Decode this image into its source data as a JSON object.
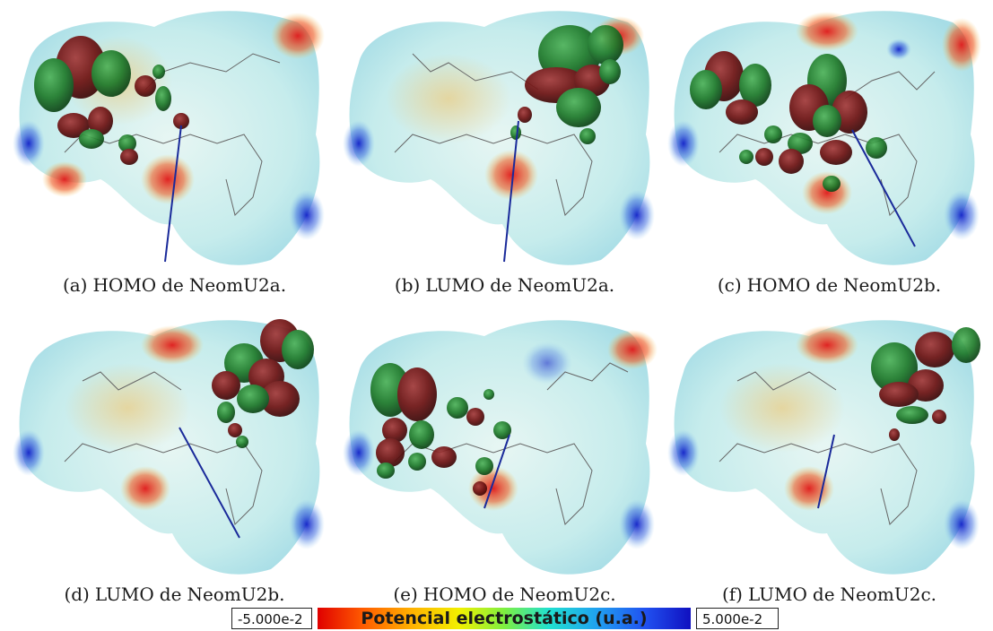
{
  "panels": [
    {
      "tag": "(a)",
      "orbital": "HOMO",
      "prep": "de",
      "molecule": "NeomU2a."
    },
    {
      "tag": "(b)",
      "orbital": "LUMO",
      "prep": "de",
      "molecule": "NeomU2a."
    },
    {
      "tag": "(c)",
      "orbital": "HOMO",
      "prep": "de",
      "molecule": "NeomU2b."
    },
    {
      "tag": "(d)",
      "orbital": "LUMO",
      "prep": "de",
      "molecule": "NeomU2b."
    },
    {
      "tag": "(e)",
      "orbital": "HOMO",
      "prep": "de",
      "molecule": "NeomU2c."
    },
    {
      "tag": "(f)",
      "orbital": "LUMO",
      "prep": "de",
      "molecule": "NeomU2c."
    }
  ],
  "colorbar": {
    "min": "-5.000e-2",
    "max": "5.000e-2",
    "title": "Potencial electrostático (u.a.)"
  },
  "colors": {
    "lobe_green": "#1f7a2a",
    "lobe_red": "#6e1212",
    "surface_cyan": "#bfe9ee",
    "negative": "#d81b1b",
    "positive": "#1a2ad0",
    "dipole": "#1a2a9a"
  }
}
